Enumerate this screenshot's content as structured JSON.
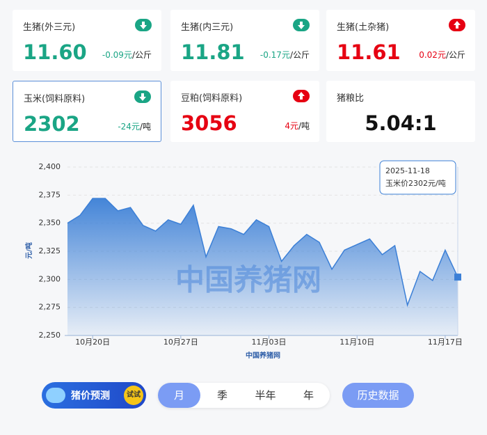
{
  "cards": [
    {
      "name": "生猪(外三元)",
      "price": "11.60",
      "change": "-0.09元",
      "unit": "/公斤",
      "trend": "down"
    },
    {
      "name": "生猪(内三元)",
      "price": "11.81",
      "change": "-0.17元",
      "unit": "/公斤",
      "trend": "down"
    },
    {
      "name": "生猪(土杂猪)",
      "price": "11.61",
      "change": "0.02元",
      "unit": "/公斤",
      "trend": "up"
    },
    {
      "name": "玉米(饲料原料)",
      "price": "2302",
      "change": "-24元",
      "unit": "/吨",
      "trend": "down",
      "selected": true
    },
    {
      "name": "豆粕(饲料原料)",
      "price": "3056",
      "change": "4元",
      "unit": "/吨",
      "trend": "up"
    },
    {
      "name": "猪粮比",
      "price": "5.04:1"
    }
  ],
  "chart_data": {
    "type": "area",
    "color": "#3b7fd6",
    "y_label": "元/吨",
    "x_label": "中国养猪网",
    "watermark": "中国养猪网",
    "categories": [
      null,
      null,
      "10月20日",
      null,
      null,
      null,
      null,
      null,
      null,
      "10月27日",
      null,
      null,
      null,
      null,
      null,
      null,
      "11月03日",
      null,
      null,
      null,
      null,
      null,
      null,
      "11月10日",
      null,
      null,
      null,
      null,
      null,
      null,
      "11月17日",
      null
    ],
    "values": [
      2350,
      2357,
      2372,
      2372,
      2361,
      2364,
      2348,
      2343,
      2353,
      2349,
      2366,
      2320,
      2347,
      2345,
      2340,
      2353,
      2347,
      2316,
      2330,
      2340,
      2333,
      2309,
      2326,
      2331,
      2336,
      2322,
      2330,
      2277,
      2307,
      2299,
      2326,
      2302
    ],
    "ylim": [
      2250,
      2400
    ],
    "yticks": [
      {
        "value": 2250,
        "label": "2,250"
      },
      {
        "value": 2275,
        "label": "2,275"
      },
      {
        "value": 2300,
        "label": "2,300"
      },
      {
        "value": 2325,
        "label": "2,325"
      },
      {
        "value": 2350,
        "label": "2,350"
      },
      {
        "value": 2375,
        "label": "2,375"
      },
      {
        "value": 2400,
        "label": "2,400"
      }
    ],
    "grid": true,
    "tooltip": {
      "date": "2025-11-18",
      "text": "玉米价2302元/吨"
    }
  },
  "controls": {
    "forecast": "猪价预测",
    "try": "试试",
    "tabs": [
      "月",
      "季",
      "半年",
      "年"
    ],
    "active_tab": 0,
    "history": "历史数据"
  }
}
